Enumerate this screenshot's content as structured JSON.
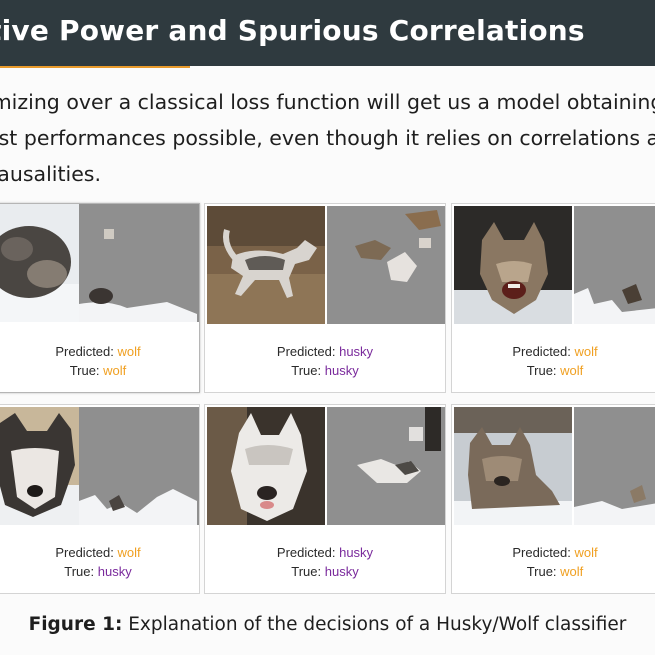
{
  "slide": {
    "title": "tive Power and Spurious Correlations",
    "accent_color": "#e89a2b",
    "title_bar_color": "#2f3a3f",
    "body_lines": [
      "imizing over a classical loss function will get us a model obtaining",
      "est performances possible, even though it relies on correlations ar",
      "causalities."
    ]
  },
  "figure": {
    "predicted_label": "Predicted:",
    "true_label": "True:",
    "panels": [
      {
        "predicted": "wolf",
        "true": "wolf",
        "image_left": "husky-image",
        "image_right": "explanation-image"
      },
      {
        "predicted": "husky",
        "true": "husky",
        "image_left": "husky-image",
        "image_right": "explanation-image"
      },
      {
        "predicted": "wolf",
        "true": "wolf",
        "image_left": "wolf-image",
        "image_right": "explanation-image"
      },
      {
        "predicted": "wolf",
        "true": "husky",
        "image_left": "husky-image",
        "image_right": "explanation-image"
      },
      {
        "predicted": "husky",
        "true": "husky",
        "image_left": "husky-image",
        "image_right": "explanation-image"
      },
      {
        "predicted": "wolf",
        "true": "wolf",
        "image_left": "wolf-image",
        "image_right": "explanation-image"
      }
    ],
    "label_colors": {
      "wolf": "#f0a022",
      "husky": "#7a2a9c"
    },
    "caption_prefix": "Figure 1:",
    "caption_text": "Explanation of the decisions of a Husky/Wolf classifier"
  }
}
